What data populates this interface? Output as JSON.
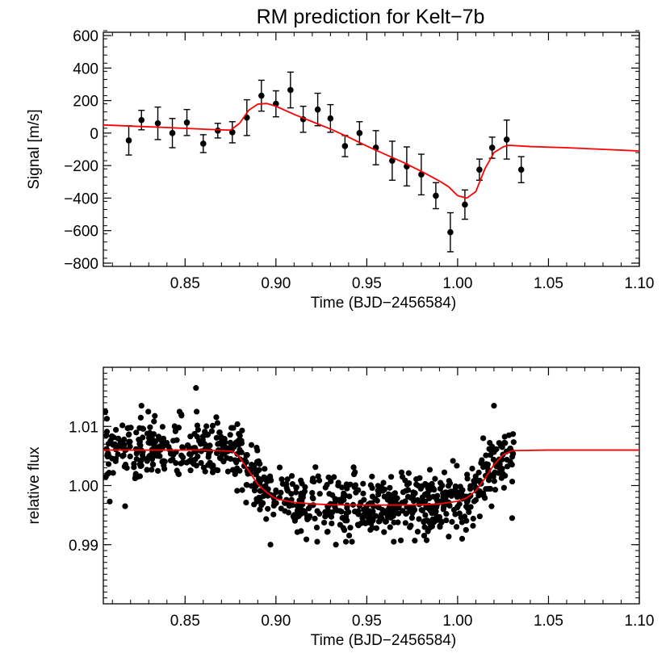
{
  "colors": {
    "model": "#ff0000",
    "data": "#000000",
    "background": "#ffffff"
  },
  "chart_data": [
    {
      "type": "scatter",
      "title": "RM prediction for Kelt−7b",
      "xlabel": "Time (BJD−2456584)",
      "ylabel": "Signal [m/s]",
      "xlim": [
        0.805,
        1.1
      ],
      "ylim": [
        -820,
        620
      ],
      "x_ticks": [
        0.85,
        0.9,
        0.95,
        1.0,
        1.05,
        1.1
      ],
      "x_tick_labels": [
        "0.85",
        "0.90",
        "0.95",
        "1.00",
        "1.05",
        "1.10"
      ],
      "y_ticks": [
        -800,
        -600,
        -400,
        -200,
        0,
        200,
        400,
        600
      ],
      "y_tick_labels": [
        "−800",
        "−600",
        "−400",
        "−200",
        "0",
        "200",
        "400",
        "600"
      ],
      "grid": false,
      "series": [
        {
          "kind": "points_with_errorbars",
          "x": [
            0.819,
            0.826,
            0.835,
            0.843,
            0.851,
            0.86,
            0.868,
            0.876,
            0.884,
            0.892,
            0.9,
            0.908,
            0.915,
            0.923,
            0.93,
            0.938,
            0.946,
            0.955,
            0.964,
            0.972,
            0.98,
            0.988,
            0.996,
            1.004,
            1.012,
            1.019,
            1.027,
            1.035
          ],
          "y": [
            -45,
            80,
            60,
            0,
            65,
            -65,
            15,
            5,
            95,
            230,
            180,
            265,
            85,
            145,
            90,
            -80,
            0,
            -90,
            -170,
            -205,
            -255,
            -385,
            -610,
            -440,
            -225,
            -90,
            -40,
            -225
          ],
          "yerr": [
            90,
            60,
            100,
            90,
            80,
            55,
            45,
            65,
            110,
            95,
            80,
            110,
            80,
            100,
            85,
            65,
            70,
            105,
            120,
            120,
            125,
            80,
            120,
            90,
            65,
            65,
            120,
            80
          ]
        },
        {
          "kind": "model_line",
          "x": [
            0.805,
            0.82,
            0.84,
            0.86,
            0.875,
            0.88,
            0.885,
            0.89,
            0.895,
            0.9,
            0.91,
            0.92,
            0.93,
            0.94,
            0.95,
            0.96,
            0.97,
            0.98,
            0.99,
            0.995,
            1.0,
            1.005,
            1.01,
            1.015,
            1.02,
            1.025,
            1.028,
            1.04,
            1.06,
            1.08,
            1.1
          ],
          "y": [
            50,
            43,
            34,
            24,
            18,
            60,
            140,
            178,
            182,
            165,
            115,
            70,
            25,
            -25,
            -80,
            -130,
            -180,
            -235,
            -295,
            -330,
            -385,
            -400,
            -360,
            -220,
            -120,
            -85,
            -75,
            -83,
            -90,
            -100,
            -110
          ]
        }
      ]
    },
    {
      "type": "scatter",
      "xlabel": "Time (BJD−2456584)",
      "ylabel": "relative flux",
      "xlim": [
        0.805,
        1.1
      ],
      "ylim": [
        0.98,
        1.02
      ],
      "x_ticks": [
        0.85,
        0.9,
        0.95,
        1.0,
        1.05,
        1.1
      ],
      "x_tick_labels": [
        "0.85",
        "0.90",
        "0.95",
        "1.00",
        "1.05",
        "1.10"
      ],
      "y_ticks": [
        0.99,
        1.0,
        1.01
      ],
      "y_tick_labels": [
        "0.99",
        "1.00",
        "1.01"
      ],
      "grid": false,
      "series": [
        {
          "kind": "scatter_cloud",
          "n_points": 900,
          "x_range": [
            0.806,
            1.031
          ],
          "scatter": 0.0025,
          "outliers": [
            [
              0.856,
              1.0165
            ],
            [
              0.897,
              0.99
            ],
            [
              0.933,
              0.99
            ],
            [
              1.02,
              1.0135
            ],
            [
              1.03,
              0.9945
            ],
            [
              0.826,
              1.0135
            ],
            [
              0.817,
              0.9965
            ]
          ]
        },
        {
          "kind": "model_line",
          "x": [
            0.805,
            0.86,
            0.876,
            0.88,
            0.885,
            0.89,
            0.895,
            0.9,
            0.91,
            0.92,
            0.93,
            0.95,
            0.97,
            0.98,
            0.99,
            1.0,
            1.005,
            1.01,
            1.015,
            1.02,
            1.025,
            1.03,
            1.05,
            1.075,
            1.1
          ],
          "y": [
            1.006,
            1.006,
            1.0058,
            1.0048,
            1.0025,
            1.0002,
            0.9988,
            0.99775,
            0.99715,
            0.9969,
            0.99675,
            0.9967,
            0.9967,
            0.99675,
            0.9969,
            0.99735,
            0.9979,
            0.9991,
            1.0012,
            1.0035,
            1.0052,
            1.0059,
            1.006,
            1.006,
            1.006
          ]
        }
      ]
    }
  ]
}
